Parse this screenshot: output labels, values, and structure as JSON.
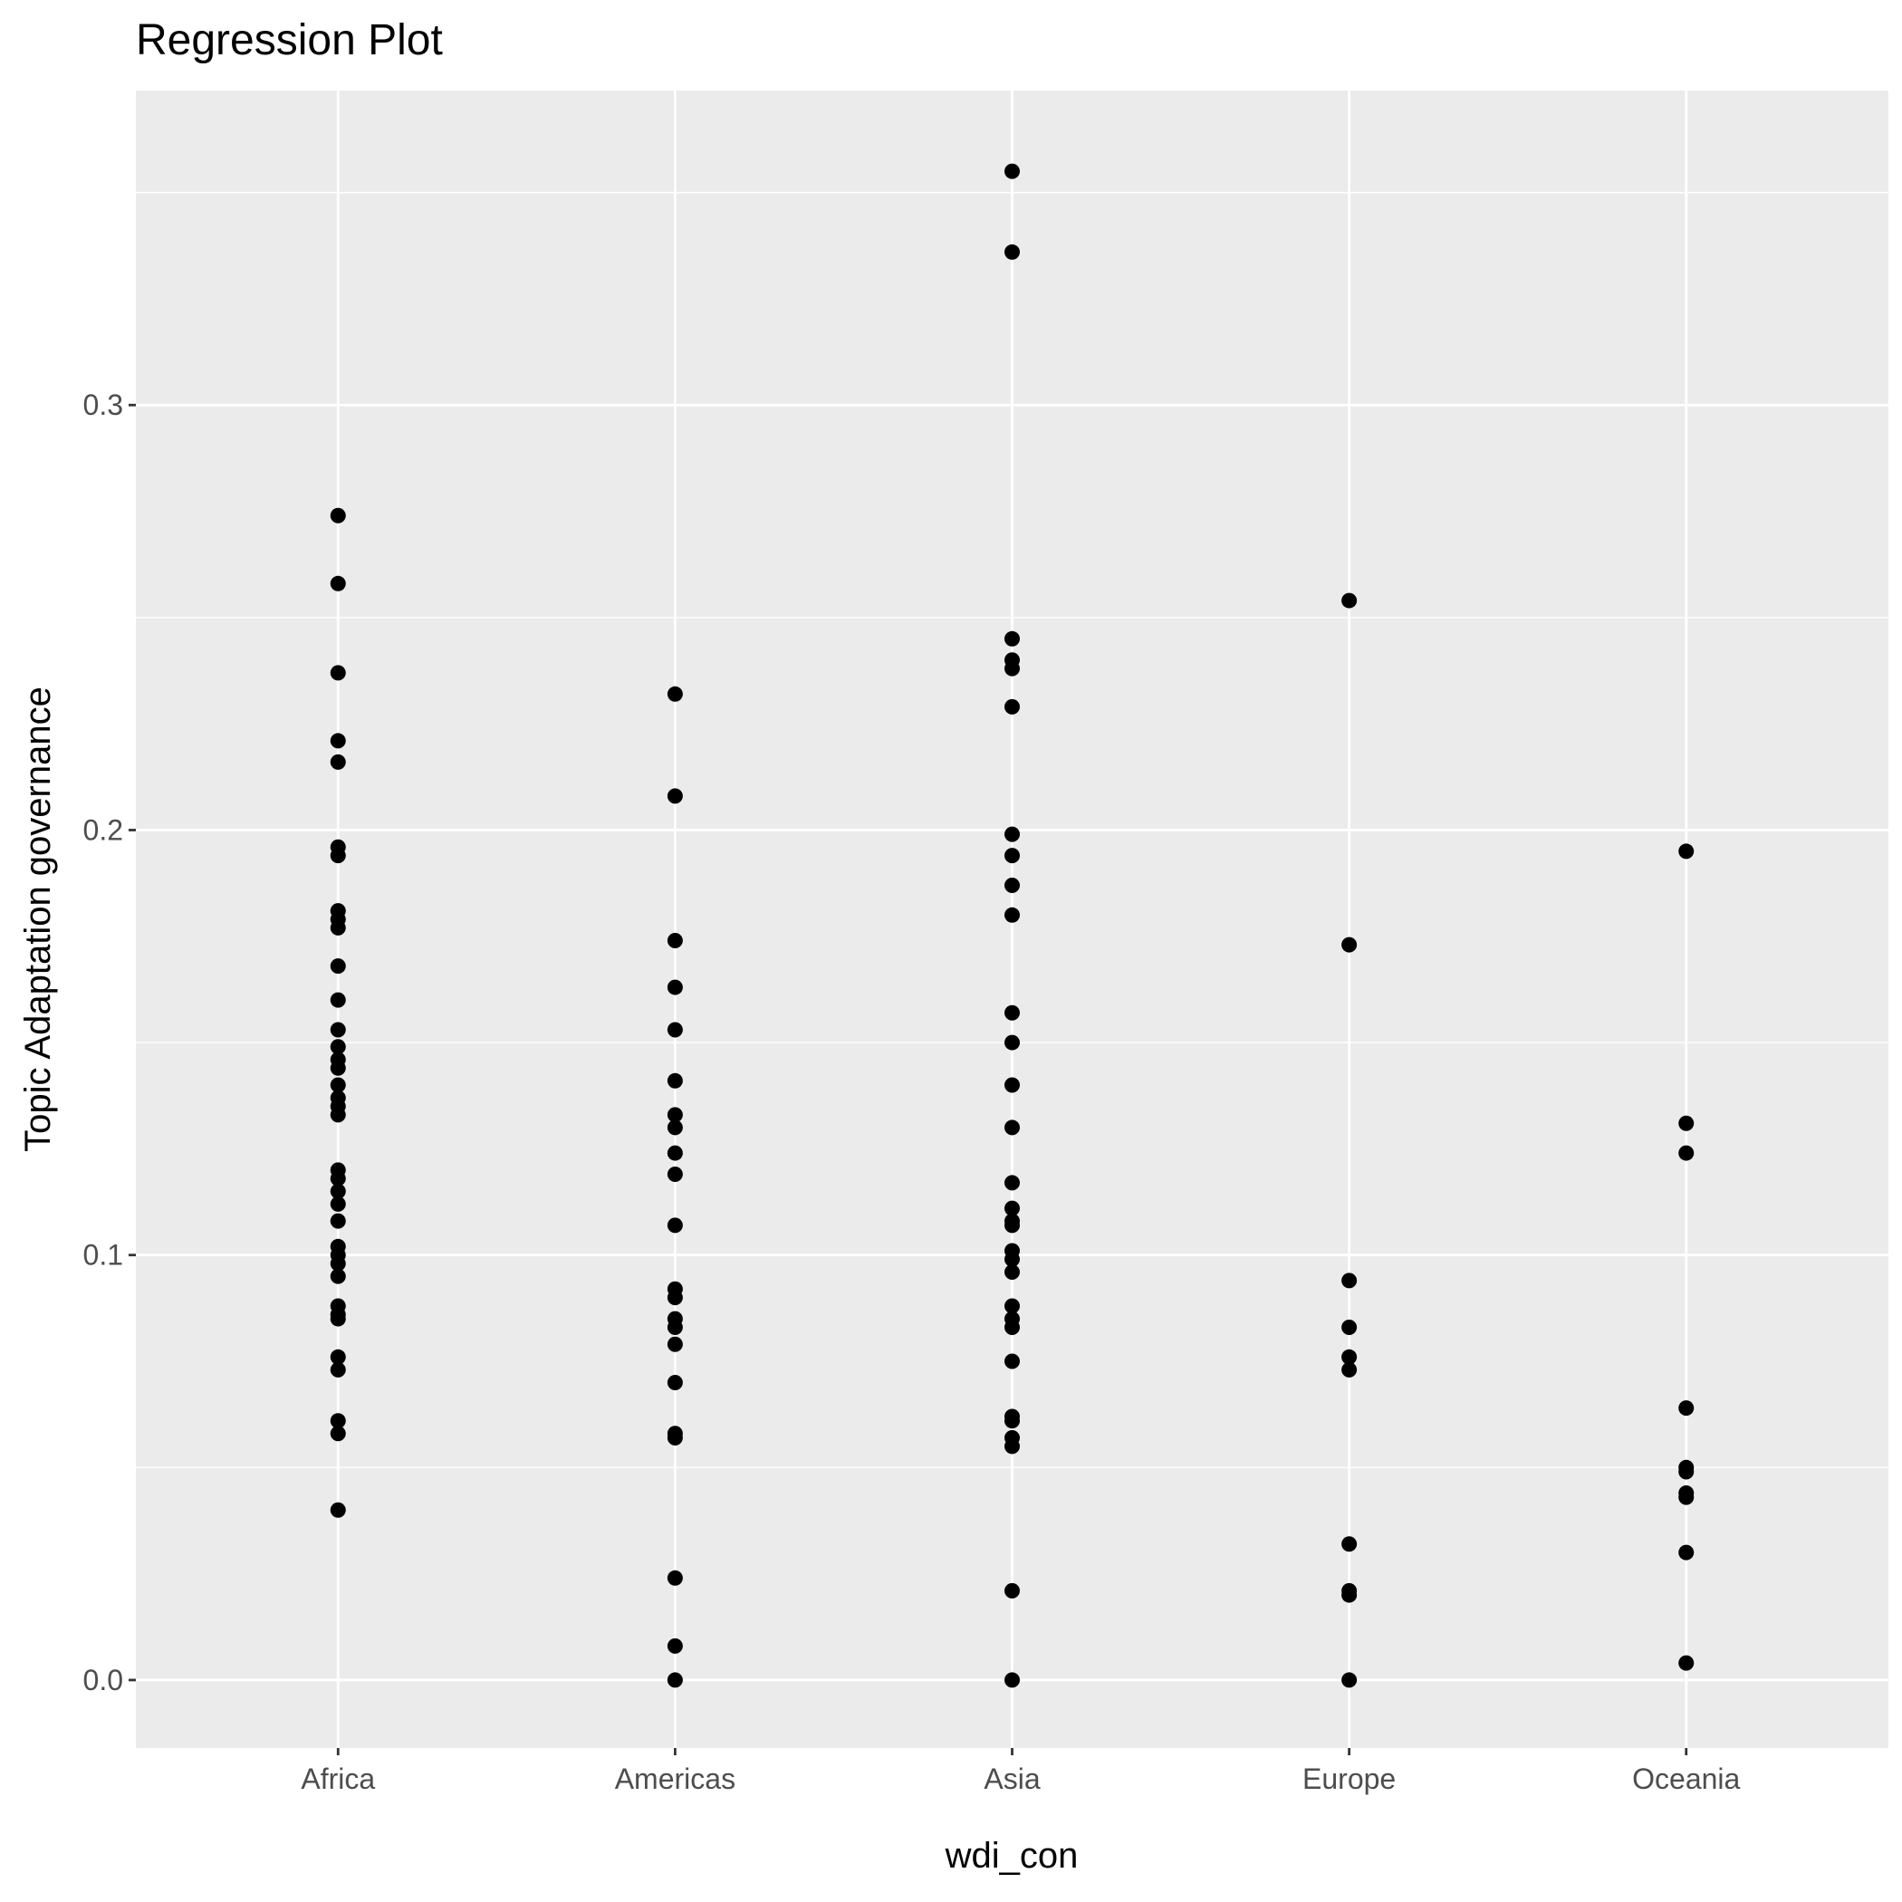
{
  "chart_data": {
    "type": "scatter",
    "title": "Regression Plot",
    "xlabel": "wdi_con",
    "ylabel": "Topic Adaptation governance",
    "categories": [
      "Africa",
      "Americas",
      "Asia",
      "Europe",
      "Oceania"
    ],
    "y_ticks": [
      "0.0",
      "0.1",
      "0.2",
      "0.3"
    ],
    "ylim": [
      -0.016,
      0.374
    ],
    "grid": true,
    "colors": {
      "panel": "#ebebeb",
      "grid": "#ffffff",
      "point": "#000000",
      "tick": "#4d4d4d"
    },
    "points": [
      {
        "category": "Africa",
        "values": [
          0.274,
          0.258,
          0.237,
          0.221,
          0.216,
          0.196,
          0.194,
          0.181,
          0.179,
          0.177,
          0.168,
          0.16,
          0.153,
          0.149,
          0.146,
          0.144,
          0.14,
          0.137,
          0.135,
          0.133,
          0.12,
          0.118,
          0.115,
          0.112,
          0.108,
          0.102,
          0.1,
          0.098,
          0.095,
          0.088,
          0.086,
          0.085,
          0.076,
          0.073,
          0.061,
          0.058,
          0.04
        ]
      },
      {
        "category": "Americas",
        "values": [
          0.232,
          0.208,
          0.174,
          0.163,
          0.153,
          0.141,
          0.133,
          0.13,
          0.124,
          0.119,
          0.107,
          0.092,
          0.09,
          0.085,
          0.083,
          0.079,
          0.07,
          0.058,
          0.057,
          0.024,
          0.008,
          0.0
        ]
      },
      {
        "category": "Asia",
        "values": [
          0.355,
          0.336,
          0.245,
          0.24,
          0.238,
          0.229,
          0.199,
          0.194,
          0.187,
          0.18,
          0.157,
          0.15,
          0.14,
          0.13,
          0.117,
          0.111,
          0.108,
          0.107,
          0.101,
          0.099,
          0.096,
          0.088,
          0.085,
          0.083,
          0.075,
          0.062,
          0.061,
          0.057,
          0.055,
          0.021,
          0.0
        ]
      },
      {
        "category": "Europe",
        "values": [
          0.254,
          0.173,
          0.094,
          0.083,
          0.076,
          0.073,
          0.032,
          0.021,
          0.02,
          0.0
        ]
      },
      {
        "category": "Oceania",
        "values": [
          0.195,
          0.131,
          0.124,
          0.064,
          0.05,
          0.049,
          0.044,
          0.043,
          0.03,
          0.004
        ]
      }
    ]
  }
}
